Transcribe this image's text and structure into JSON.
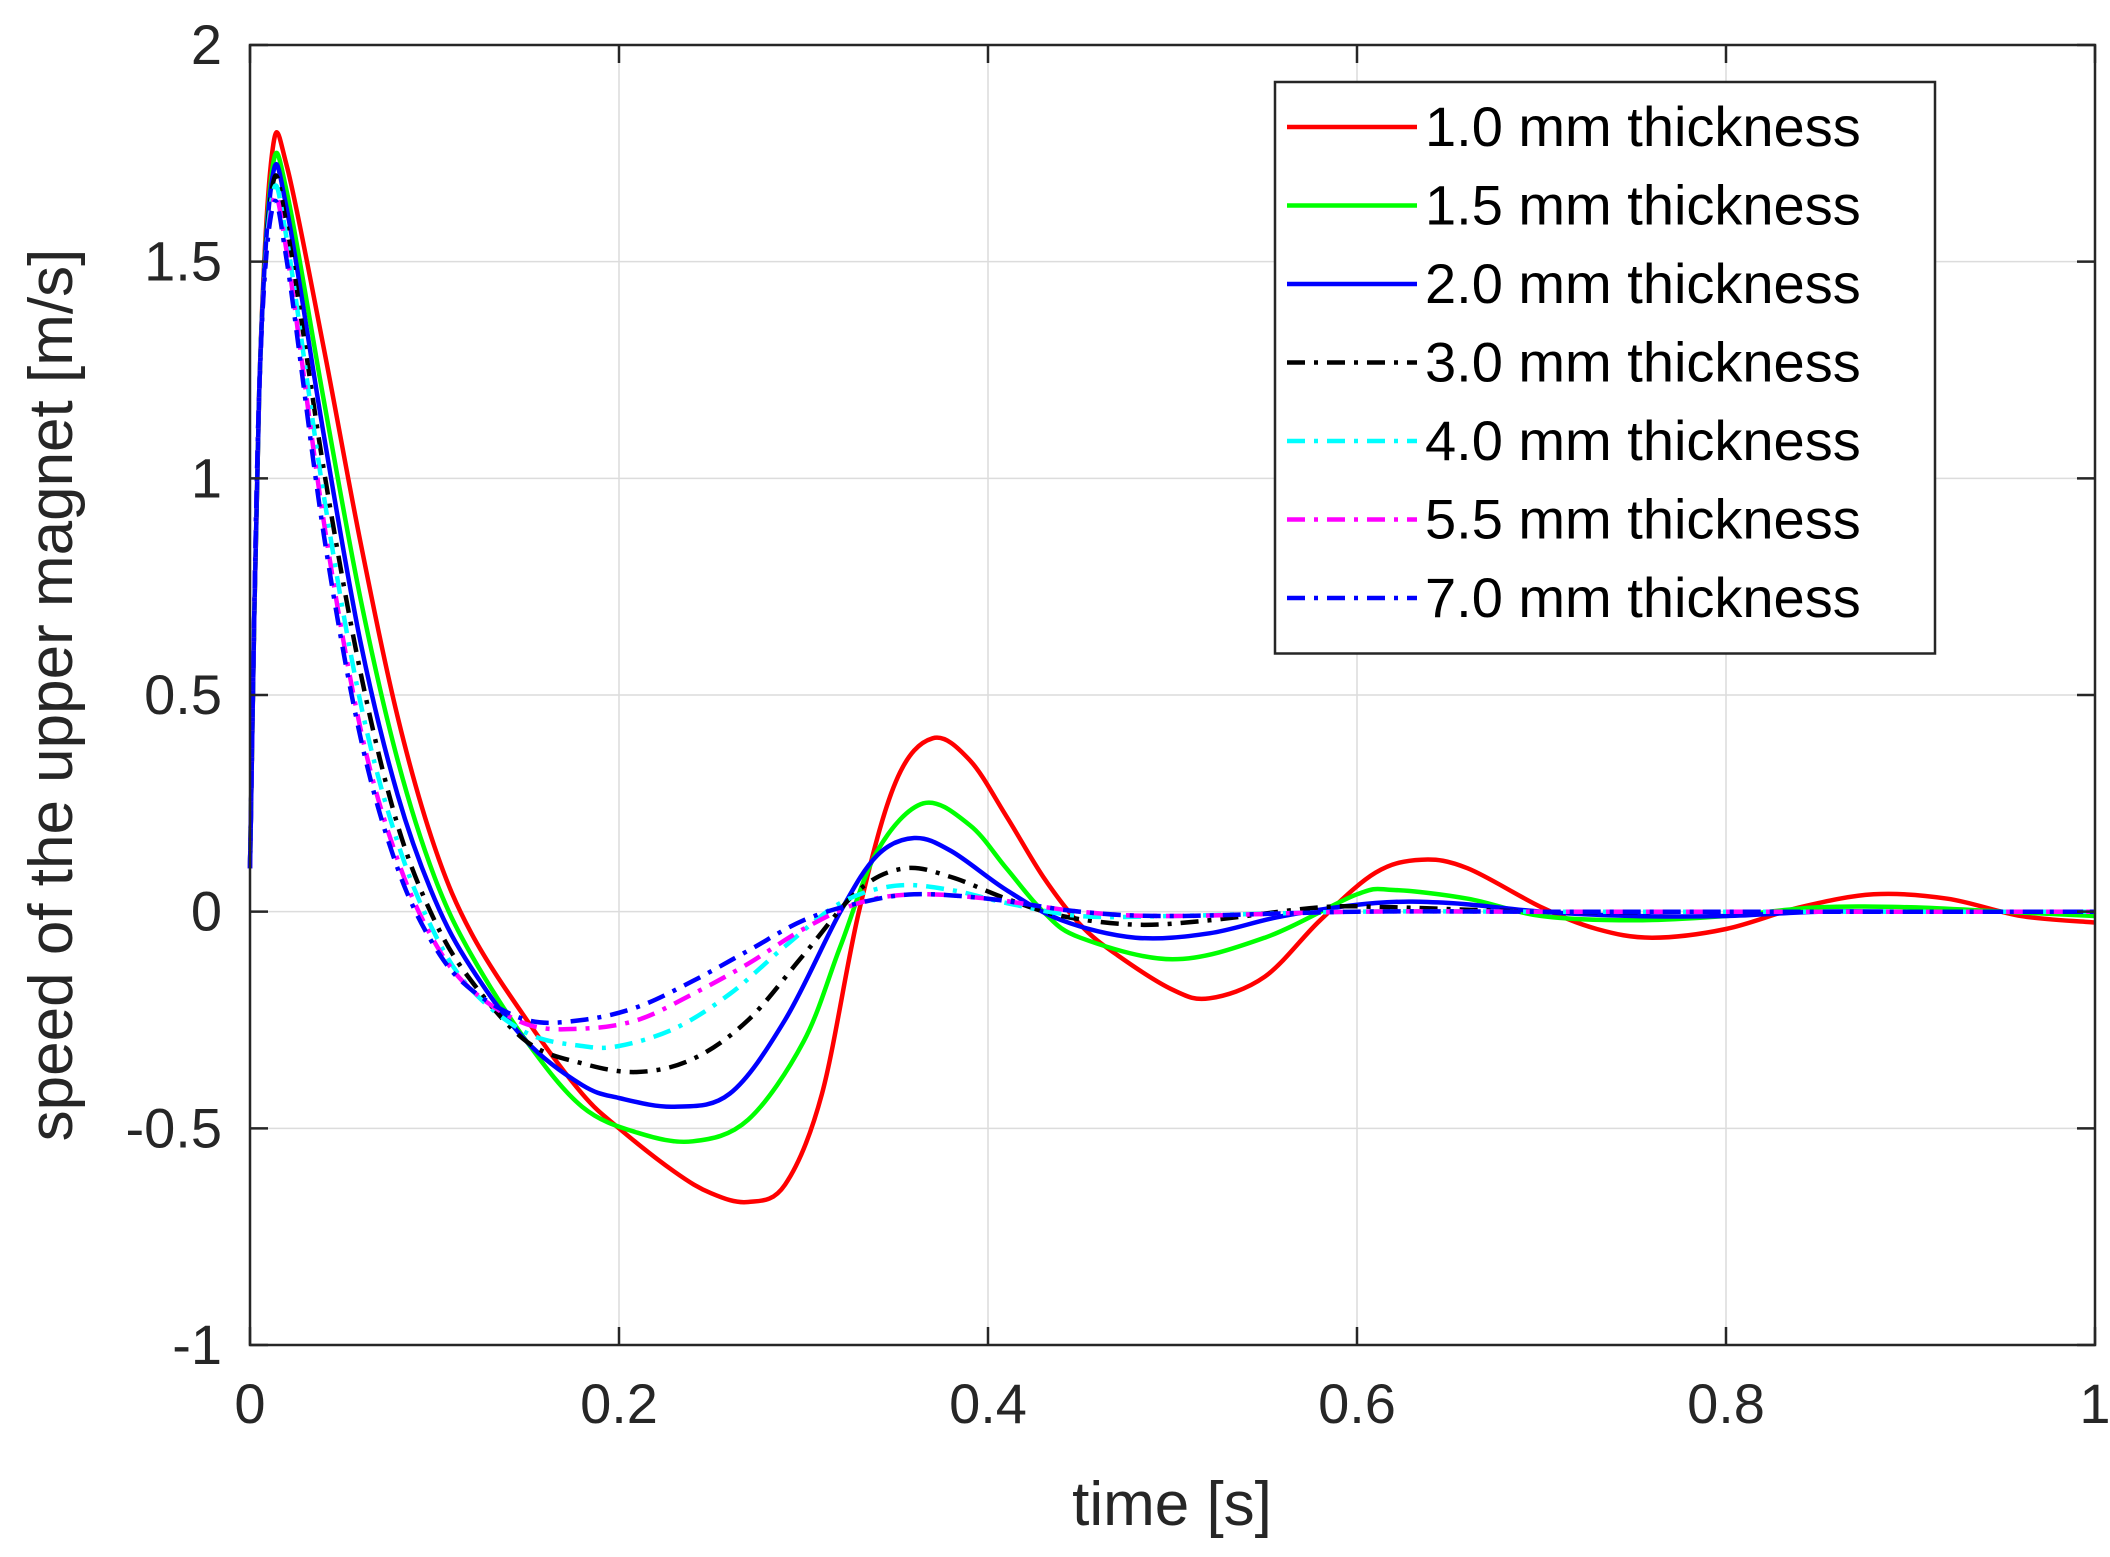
{
  "chart_data": {
    "type": "line",
    "title": "",
    "xlabel": "time [s]",
    "ylabel": "speed of the upper magnet [m/s]",
    "xlim": [
      0,
      1
    ],
    "ylim": [
      -1,
      2
    ],
    "grid": true,
    "legend_position": "top-right",
    "x_ticks": [
      0,
      0.2,
      0.4,
      0.6,
      0.8,
      1
    ],
    "x_tick_labels": [
      "0",
      "0.2",
      "0.4",
      "0.6",
      "0.8",
      "1"
    ],
    "y_ticks": [
      -1,
      -0.5,
      0,
      0.5,
      1,
      1.5,
      2
    ],
    "y_tick_labels": [
      "-1",
      "-0.5",
      "0",
      "0.5",
      "1",
      "1.5",
      "2"
    ],
    "series": [
      {
        "name": "1.0 mm thickness",
        "color": "#ff0000",
        "dash": "solid",
        "x": [
          0,
          0.005,
          0.012,
          0.02,
          0.04,
          0.06,
          0.08,
          0.1,
          0.12,
          0.15,
          0.18,
          0.2,
          0.23,
          0.25,
          0.27,
          0.29,
          0.31,
          0.33,
          0.35,
          0.37,
          0.39,
          0.41,
          0.43,
          0.45,
          0.47,
          0.5,
          0.52,
          0.55,
          0.58,
          0.61,
          0.635,
          0.66,
          0.7,
          0.73,
          0.76,
          0.8,
          0.84,
          0.88,
          0.92,
          0.96,
          1.0
        ],
        "values": [
          0.1,
          1.2,
          1.75,
          1.72,
          1.3,
          0.85,
          0.45,
          0.15,
          -0.05,
          -0.25,
          -0.42,
          -0.5,
          -0.6,
          -0.65,
          -0.67,
          -0.63,
          -0.42,
          0.0,
          0.3,
          0.4,
          0.35,
          0.22,
          0.08,
          -0.03,
          -0.1,
          -0.18,
          -0.2,
          -0.15,
          -0.02,
          0.09,
          0.12,
          0.1,
          0.01,
          -0.04,
          -0.06,
          -0.04,
          0.01,
          0.04,
          0.03,
          -0.01,
          -0.025
        ]
      },
      {
        "name": "1.5 mm thickness",
        "color": "#00ff00",
        "dash": "solid",
        "x": [
          0,
          0.005,
          0.012,
          0.02,
          0.04,
          0.06,
          0.08,
          0.1,
          0.12,
          0.15,
          0.18,
          0.21,
          0.24,
          0.27,
          0.3,
          0.32,
          0.34,
          0.365,
          0.39,
          0.41,
          0.43,
          0.45,
          0.5,
          0.55,
          0.6,
          0.62,
          0.66,
          0.7,
          0.75,
          0.8,
          0.85,
          0.9,
          0.95,
          1.0
        ],
        "values": [
          0.1,
          1.2,
          1.71,
          1.66,
          1.18,
          0.72,
          0.35,
          0.08,
          -0.1,
          -0.3,
          -0.45,
          -0.51,
          -0.53,
          -0.48,
          -0.3,
          -0.08,
          0.14,
          0.25,
          0.2,
          0.1,
          0.0,
          -0.06,
          -0.11,
          -0.06,
          0.04,
          0.05,
          0.03,
          -0.01,
          -0.02,
          -0.01,
          0.01,
          0.01,
          0.0,
          -0.01
        ]
      },
      {
        "name": "2.0 mm thickness",
        "color": "#0000ff",
        "dash": "solid",
        "x": [
          0,
          0.005,
          0.012,
          0.02,
          0.04,
          0.06,
          0.08,
          0.1,
          0.12,
          0.15,
          0.18,
          0.2,
          0.23,
          0.26,
          0.29,
          0.32,
          0.34,
          0.36,
          0.38,
          0.41,
          0.44,
          0.48,
          0.52,
          0.56,
          0.61,
          0.65,
          0.7,
          0.75,
          0.8,
          0.85,
          0.9,
          0.95,
          1.0
        ],
        "values": [
          0.1,
          1.2,
          1.69,
          1.62,
          1.1,
          0.62,
          0.27,
          0.03,
          -0.13,
          -0.3,
          -0.4,
          -0.43,
          -0.45,
          -0.42,
          -0.25,
          0.0,
          0.13,
          0.17,
          0.14,
          0.05,
          -0.02,
          -0.06,
          -0.05,
          -0.01,
          0.02,
          0.02,
          0.0,
          -0.01,
          -0.01,
          0.0,
          0.0,
          0.0,
          0.0
        ]
      },
      {
        "name": "3.0 mm thickness",
        "color": "#000000",
        "dash": "dashdot",
        "x": [
          0,
          0.005,
          0.012,
          0.02,
          0.04,
          0.06,
          0.08,
          0.1,
          0.12,
          0.15,
          0.18,
          0.21,
          0.24,
          0.27,
          0.3,
          0.33,
          0.355,
          0.38,
          0.41,
          0.44,
          0.48,
          0.52,
          0.58,
          0.62,
          0.7,
          0.8,
          0.9,
          1.0
        ],
        "values": [
          0.1,
          1.2,
          1.67,
          1.58,
          1.02,
          0.55,
          0.2,
          -0.02,
          -0.16,
          -0.3,
          -0.35,
          -0.37,
          -0.34,
          -0.25,
          -0.1,
          0.05,
          0.1,
          0.08,
          0.03,
          -0.01,
          -0.03,
          -0.02,
          0.01,
          0.01,
          0.0,
          0.0,
          0.0,
          0.0
        ]
      },
      {
        "name": "4.0 mm thickness",
        "color": "#00ffff",
        "dash": "dashdot",
        "x": [
          0,
          0.005,
          0.012,
          0.02,
          0.04,
          0.06,
          0.08,
          0.1,
          0.12,
          0.15,
          0.18,
          0.2,
          0.23,
          0.26,
          0.29,
          0.32,
          0.35,
          0.38,
          0.41,
          0.45,
          0.5,
          0.6,
          0.7,
          0.8,
          0.9,
          1.0
        ],
        "values": [
          0.1,
          1.2,
          1.65,
          1.55,
          0.96,
          0.48,
          0.16,
          -0.05,
          -0.18,
          -0.28,
          -0.31,
          -0.31,
          -0.27,
          -0.19,
          -0.08,
          0.02,
          0.06,
          0.05,
          0.02,
          -0.01,
          -0.01,
          0.0,
          0.0,
          0.0,
          0.0,
          0.0
        ]
      },
      {
        "name": "5.5 mm thickness",
        "color": "#ff00ff",
        "dash": "dashdot",
        "x": [
          0,
          0.005,
          0.012,
          0.02,
          0.04,
          0.06,
          0.08,
          0.1,
          0.12,
          0.15,
          0.18,
          0.21,
          0.24,
          0.27,
          0.3,
          0.33,
          0.36,
          0.4,
          0.45,
          0.5,
          0.6,
          0.7,
          0.8,
          0.9,
          1.0
        ],
        "values": [
          0.1,
          1.2,
          1.63,
          1.52,
          0.9,
          0.42,
          0.12,
          -0.07,
          -0.18,
          -0.26,
          -0.27,
          -0.25,
          -0.19,
          -0.12,
          -0.04,
          0.02,
          0.04,
          0.03,
          0.0,
          -0.01,
          0.0,
          0.0,
          0.0,
          0.0,
          0.0
        ]
      },
      {
        "name": "7.0 mm thickness",
        "color": "#0000ff",
        "dash": "dashdot",
        "x": [
          0,
          0.005,
          0.012,
          0.02,
          0.04,
          0.06,
          0.08,
          0.1,
          0.12,
          0.15,
          0.18,
          0.21,
          0.24,
          0.27,
          0.3,
          0.33,
          0.36,
          0.4,
          0.45,
          0.5,
          0.6,
          0.7,
          0.8,
          0.9,
          1.0
        ],
        "values": [
          0.1,
          1.2,
          1.62,
          1.5,
          0.87,
          0.4,
          0.1,
          -0.08,
          -0.18,
          -0.25,
          -0.25,
          -0.22,
          -0.16,
          -0.09,
          -0.02,
          0.02,
          0.04,
          0.03,
          0.0,
          -0.01,
          0.0,
          0.0,
          0.0,
          0.0,
          0.0
        ]
      }
    ]
  }
}
